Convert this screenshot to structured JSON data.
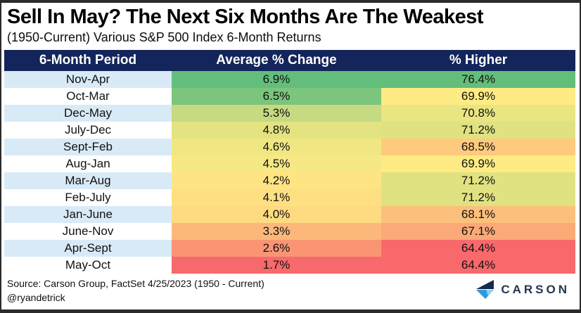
{
  "title": "Sell In May? The Next Six Months Are The Weakest",
  "subtitle": "(1950-Current) Various S&P 500 Index 6-Month Returns",
  "table": {
    "header": {
      "period": "6-Month Period",
      "avg": "Average % Change",
      "higher": "% Higher"
    },
    "rows": [
      {
        "period": "Nov-Apr",
        "avg": "6.9%",
        "higher": "76.4%",
        "avg_color": "#63BE7B",
        "higher_color": "#63BE7B",
        "label_bg": "#D9EAF7"
      },
      {
        "period": "Oct-Mar",
        "avg": "6.5%",
        "higher": "69.9%",
        "avg_color": "#7CC57C",
        "higher_color": "#FFEB84",
        "label_bg": "#FFFFFF"
      },
      {
        "period": "Dec-May",
        "avg": "5.3%",
        "higher": "70.8%",
        "avg_color": "#C5DA81",
        "higher_color": "#E9E583",
        "label_bg": "#D9EAF7"
      },
      {
        "period": "July-Dec",
        "avg": "4.8%",
        "higher": "71.2%",
        "avg_color": "#E3E382",
        "higher_color": "#E0E282",
        "label_bg": "#FFFFFF"
      },
      {
        "period": "Sept-Feb",
        "avg": "4.6%",
        "higher": "68.5%",
        "avg_color": "#F0E783",
        "higher_color": "#FDCA7E",
        "label_bg": "#D9EAF7"
      },
      {
        "period": "Aug-Jan",
        "avg": "4.5%",
        "higher": "69.9%",
        "avg_color": "#F6E884",
        "higher_color": "#FFEB84",
        "label_bg": "#FFFFFF"
      },
      {
        "period": "Mar-Aug",
        "avg": "4.2%",
        "higher": "71.2%",
        "avg_color": "#FFE483",
        "higher_color": "#E0E282",
        "label_bg": "#D9EAF7"
      },
      {
        "period": "Feb-July",
        "avg": "4.1%",
        "higher": "71.2%",
        "avg_color": "#FEDF82",
        "higher_color": "#E0E282",
        "label_bg": "#FFFFFF"
      },
      {
        "period": "Jan-June",
        "avg": "4.0%",
        "higher": "68.1%",
        "avg_color": "#FEDA81",
        "higher_color": "#FDC07C",
        "label_bg": "#D9EAF7"
      },
      {
        "period": "June-Nov",
        "avg": "3.3%",
        "higher": "67.1%",
        "avg_color": "#FCB87A",
        "higher_color": "#FBA977",
        "label_bg": "#FFFFFF"
      },
      {
        "period": "Apr-Sept",
        "avg": "2.6%",
        "higher": "64.4%",
        "avg_color": "#FA9574",
        "higher_color": "#F8696B",
        "label_bg": "#D9EAF7"
      },
      {
        "period": "May-Oct",
        "avg": "1.7%",
        "higher": "64.4%",
        "avg_color": "#F8696B",
        "higher_color": "#F8696B",
        "label_bg": "#FFFFFF"
      }
    ]
  },
  "footer": {
    "source_line1": "Source: Carson Group, FactSet 4/25/2023 (1950 - Current)",
    "source_line2": "@ryandetrick",
    "logo_text": "CARSON"
  },
  "colors": {
    "header_bg": "#13255A",
    "header_text": "#FFFFFF",
    "row_alt_blue": "#D9EAF7",
    "scale_green_max": "#63BE7B",
    "scale_yellow_mid": "#FFEB84",
    "scale_red_min": "#F8696B",
    "logo_navy": "#16294F",
    "logo_blue": "#2B9CD8",
    "logo_light_blue": "#8FCFF0",
    "logo_text_color": "#24364F"
  },
  "chart_data": {
    "type": "table",
    "title": "Sell In May? The Next Six Months Are The Weakest",
    "subtitle": "(1950-Current) Various S&P 500 Index 6-Month Returns",
    "columns": [
      "6-Month Period",
      "Average % Change",
      "% Higher"
    ],
    "rows": [
      [
        "Nov-Apr",
        6.9,
        76.4
      ],
      [
        "Oct-Mar",
        6.5,
        69.9
      ],
      [
        "Dec-May",
        5.3,
        70.8
      ],
      [
        "July-Dec",
        4.8,
        71.2
      ],
      [
        "Sept-Feb",
        4.6,
        68.5
      ],
      [
        "Aug-Jan",
        4.5,
        69.9
      ],
      [
        "Mar-Aug",
        4.2,
        71.2
      ],
      [
        "Feb-July",
        4.1,
        71.2
      ],
      [
        "Jan-June",
        4.0,
        68.1
      ],
      [
        "June-Nov",
        3.3,
        67.1
      ],
      [
        "Apr-Sept",
        2.6,
        64.4
      ],
      [
        "May-Oct",
        1.7,
        64.4
      ]
    ],
    "color_scale": "red-yellow-green conditional formatting per column (min=red, median=yellow, max=green)",
    "layout": "header row navy with white text; first column alternates light blue/white"
  }
}
